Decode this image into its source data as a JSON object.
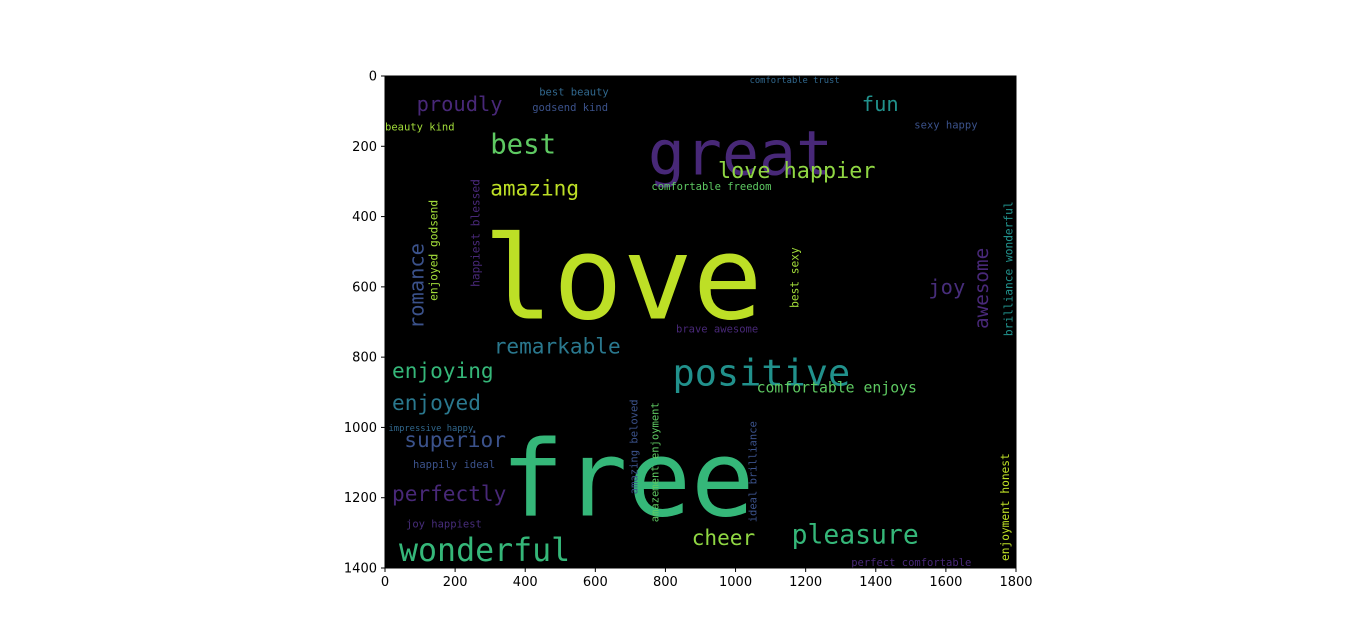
{
  "chart_data": {
    "type": "image",
    "description_of_content": "word cloud",
    "xlim": [
      0,
      1800
    ],
    "ylim": [
      1400,
      0
    ],
    "x_ticks": [
      0,
      200,
      400,
      600,
      800,
      1000,
      1200,
      1400,
      1600,
      1800
    ],
    "y_ticks": [
      0,
      200,
      400,
      600,
      800,
      1000,
      1200,
      1400
    ],
    "background_color": "#000000",
    "words": [
      {
        "text": "love",
        "x": 280,
        "y": 690,
        "size": 330,
        "color": "#bddf26",
        "vertical": false
      },
      {
        "text": "free",
        "x": 330,
        "y": 1250,
        "size": 300,
        "color": "#35b779",
        "vertical": false
      },
      {
        "text": "great",
        "x": 750,
        "y": 280,
        "size": 175,
        "color": "#482878",
        "vertical": false
      },
      {
        "text": "positive",
        "x": 820,
        "y": 880,
        "size": 105,
        "color": "#21918c",
        "vertical": false
      },
      {
        "text": "wonderful",
        "x": 40,
        "y": 1380,
        "size": 90,
        "color": "#35b779",
        "vertical": false
      },
      {
        "text": "pleasure",
        "x": 1160,
        "y": 1330,
        "size": 75,
        "color": "#35b779",
        "vertical": false
      },
      {
        "text": "best",
        "x": 300,
        "y": 220,
        "size": 78,
        "color": "#5ec962",
        "vertical": false
      },
      {
        "text": "love happier",
        "x": 950,
        "y": 290,
        "size": 62,
        "color": "#90d743",
        "vertical": false
      },
      {
        "text": "remarkable",
        "x": 310,
        "y": 790,
        "size": 60,
        "color": "#2a788e",
        "vertical": false
      },
      {
        "text": "proudly",
        "x": 90,
        "y": 100,
        "size": 58,
        "color": "#482878",
        "vertical": false
      },
      {
        "text": "enjoying",
        "x": 20,
        "y": 860,
        "size": 60,
        "color": "#35b779",
        "vertical": false
      },
      {
        "text": "enjoyed",
        "x": 20,
        "y": 950,
        "size": 60,
        "color": "#2a788e",
        "vertical": false
      },
      {
        "text": "superior",
        "x": 55,
        "y": 1055,
        "size": 60,
        "color": "#3b528b",
        "vertical": false
      },
      {
        "text": "perfectly",
        "x": 20,
        "y": 1210,
        "size": 60,
        "color": "#482878",
        "vertical": false
      },
      {
        "text": "amazing",
        "x": 300,
        "y": 340,
        "size": 60,
        "color": "#bddf26",
        "vertical": false
      },
      {
        "text": "fun",
        "x": 1360,
        "y": 100,
        "size": 58,
        "color": "#21918c",
        "vertical": false
      },
      {
        "text": "joy",
        "x": 1550,
        "y": 620,
        "size": 58,
        "color": "#472d7b",
        "vertical": false
      },
      {
        "text": "cheer",
        "x": 875,
        "y": 1335,
        "size": 60,
        "color": "#90d743",
        "vertical": false
      },
      {
        "text": "romance",
        "x": 110,
        "y": 720,
        "size": 58,
        "color": "#3b528b",
        "vertical": true
      },
      {
        "text": "awesome",
        "x": 1720,
        "y": 720,
        "size": 55,
        "color": "#482878",
        "vertical": true
      },
      {
        "text": "comfortable enjoys",
        "x": 1060,
        "y": 900,
        "size": 42,
        "color": "#5ec962",
        "vertical": false
      },
      {
        "text": "best beauty",
        "x": 440,
        "y": 55,
        "size": 30,
        "color": "#31688e",
        "vertical": false
      },
      {
        "text": "godsend kind",
        "x": 420,
        "y": 100,
        "size": 30,
        "color": "#3b528b",
        "vertical": false
      },
      {
        "text": "beauty kind",
        "x": 0,
        "y": 155,
        "size": 30,
        "color": "#a0da39",
        "vertical": false
      },
      {
        "text": "sexy happy",
        "x": 1510,
        "y": 150,
        "size": 30,
        "color": "#3b528b",
        "vertical": false
      },
      {
        "text": "comfortable trust",
        "x": 1040,
        "y": 20,
        "size": 25,
        "color": "#31688e",
        "vertical": false
      },
      {
        "text": "comfortable freedom",
        "x": 760,
        "y": 325,
        "size": 30,
        "color": "#5ec962",
        "vertical": false
      },
      {
        "text": "brave awesome",
        "x": 830,
        "y": 730,
        "size": 30,
        "color": "#482878",
        "vertical": false
      },
      {
        "text": "impressive happy",
        "x": 10,
        "y": 1010,
        "size": 25,
        "color": "#31688e",
        "vertical": false
      },
      {
        "text": "happily ideal",
        "x": 80,
        "y": 1115,
        "size": 30,
        "color": "#3b528b",
        "vertical": false
      },
      {
        "text": "joy happiest",
        "x": 60,
        "y": 1285,
        "size": 30,
        "color": "#472d7b",
        "vertical": false
      },
      {
        "text": "perfect comfortable",
        "x": 1330,
        "y": 1395,
        "size": 30,
        "color": "#482878",
        "vertical": false
      },
      {
        "text": "enjoyed godsend",
        "x": 150,
        "y": 640,
        "size": 32,
        "color": "#a0da39",
        "vertical": true
      },
      {
        "text": "happiest blessed",
        "x": 270,
        "y": 600,
        "size": 32,
        "color": "#482878",
        "vertical": true
      },
      {
        "text": "best sexy",
        "x": 1180,
        "y": 660,
        "size": 32,
        "color": "#a0da39",
        "vertical": true
      },
      {
        "text": "brilliance wonderful",
        "x": 1790,
        "y": 740,
        "size": 32,
        "color": "#21918c",
        "vertical": true
      },
      {
        "text": "amazing beloved",
        "x": 720,
        "y": 1190,
        "size": 30,
        "color": "#3b528b",
        "vertical": true
      },
      {
        "text": "amazement enjoyment",
        "x": 780,
        "y": 1270,
        "size": 30,
        "color": "#5ec962",
        "vertical": true
      },
      {
        "text": "ideal brilliance",
        "x": 1060,
        "y": 1270,
        "size": 30,
        "color": "#3b528b",
        "vertical": true
      },
      {
        "text": "enjoyment honest",
        "x": 1780,
        "y": 1380,
        "size": 32,
        "color": "#bddf26",
        "vertical": true
      }
    ]
  }
}
